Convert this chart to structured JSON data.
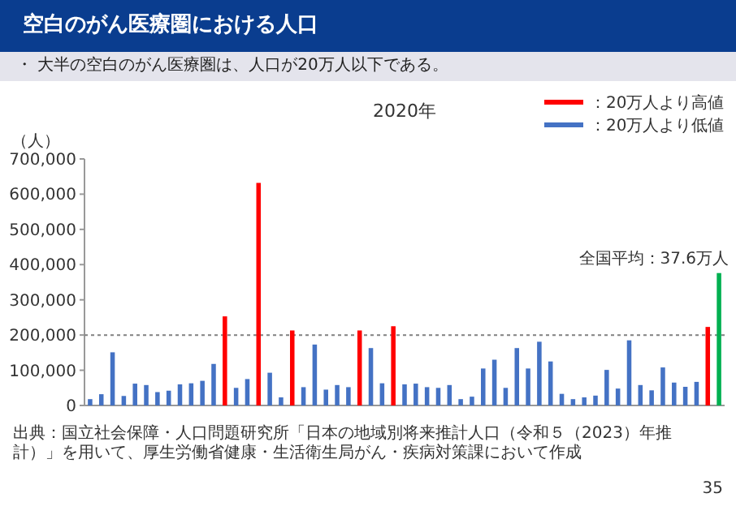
{
  "chart_data": {
    "type": "bar",
    "title": "空白のがん医療圏における人口",
    "subtitle": "・ 大半の空白のがん医療圏は、人口が20万人以下である。",
    "ylabel": "（人）",
    "annotations": [
      "2020年",
      "全国平均：37.6万人",
      "出典：国立社会保障・人口問題研究所「日本の地域別将来推計人口（令和５（2023）年推計）」を用いて、厚生労働省健康・生活衛生局がん・疾病対策課において作成",
      "35"
    ],
    "categories": [
      null,
      null,
      null,
      null,
      null,
      null,
      null,
      null,
      null,
      null,
      null,
      null,
      null,
      null,
      null,
      null,
      null,
      null,
      null,
      null,
      null,
      null,
      null,
      null,
      null,
      null,
      null,
      null,
      null,
      null,
      null,
      null,
      null,
      null,
      null,
      null,
      null,
      null,
      null,
      null,
      null,
      null,
      null,
      null,
      null,
      null,
      null,
      null,
      null,
      null,
      null,
      null,
      null,
      null,
      null,
      null,
      null
    ],
    "series": [
      {
        "name": "：20万人より高値",
        "color": "#ff0000",
        "values": [
          null,
          null,
          null,
          null,
          null,
          null,
          null,
          null,
          null,
          null,
          null,
          null,
          253000,
          null,
          null,
          632000,
          null,
          null,
          213000,
          null,
          null,
          null,
          null,
          null,
          213000,
          null,
          null,
          225000,
          null,
          null,
          null,
          null,
          null,
          null,
          null,
          null,
          null,
          null,
          null,
          null,
          null,
          null,
          null,
          null,
          null,
          null,
          null,
          null,
          null,
          null,
          null,
          null,
          null,
          null,
          null,
          223000,
          null
        ]
      },
      {
        "name": "：20万人より低値",
        "color": "#4472c4",
        "values": [
          18000,
          32000,
          151000,
          27000,
          62000,
          58000,
          38000,
          42000,
          60000,
          63000,
          70000,
          118000,
          null,
          50000,
          75000,
          null,
          93000,
          23000,
          null,
          52000,
          173000,
          45000,
          58000,
          52000,
          null,
          163000,
          63000,
          null,
          60000,
          62000,
          52000,
          50000,
          58000,
          18000,
          25000,
          105000,
          130000,
          50000,
          163000,
          105000,
          181000,
          125000,
          33000,
          18000,
          23000,
          28000,
          101000,
          48000,
          185000,
          58000,
          43000,
          108000,
          65000,
          53000,
          67000,
          null,
          null
        ]
      },
      {
        "color": "#00b050",
        "values": [
          null,
          null,
          null,
          null,
          null,
          null,
          null,
          null,
          null,
          null,
          null,
          null,
          null,
          null,
          null,
          null,
          null,
          null,
          null,
          null,
          null,
          null,
          null,
          null,
          null,
          null,
          null,
          null,
          null,
          null,
          null,
          null,
          null,
          null,
          null,
          null,
          null,
          null,
          null,
          null,
          null,
          null,
          null,
          null,
          null,
          null,
          null,
          null,
          null,
          null,
          null,
          null,
          null,
          null,
          null,
          null,
          376000
        ]
      }
    ],
    "ylim": [
      0,
      700000
    ],
    "yticks": [
      {
        "value": 0,
        "label": "0"
      },
      {
        "value": 100000,
        "label": "100,000"
      },
      {
        "value": 200000,
        "label": "200,000"
      },
      {
        "value": 300000,
        "label": "300,000"
      },
      {
        "value": 400000,
        "label": "400,000"
      },
      {
        "value": 500000,
        "label": "500,000"
      },
      {
        "value": 600000,
        "label": "600,000"
      },
      {
        "value": 700000,
        "label": "700,000"
      }
    ],
    "ref_lines": [
      {
        "axis": "y",
        "value": 200000,
        "color": "#808080",
        "line_style": "dotted"
      }
    ],
    "legend": "top right"
  }
}
